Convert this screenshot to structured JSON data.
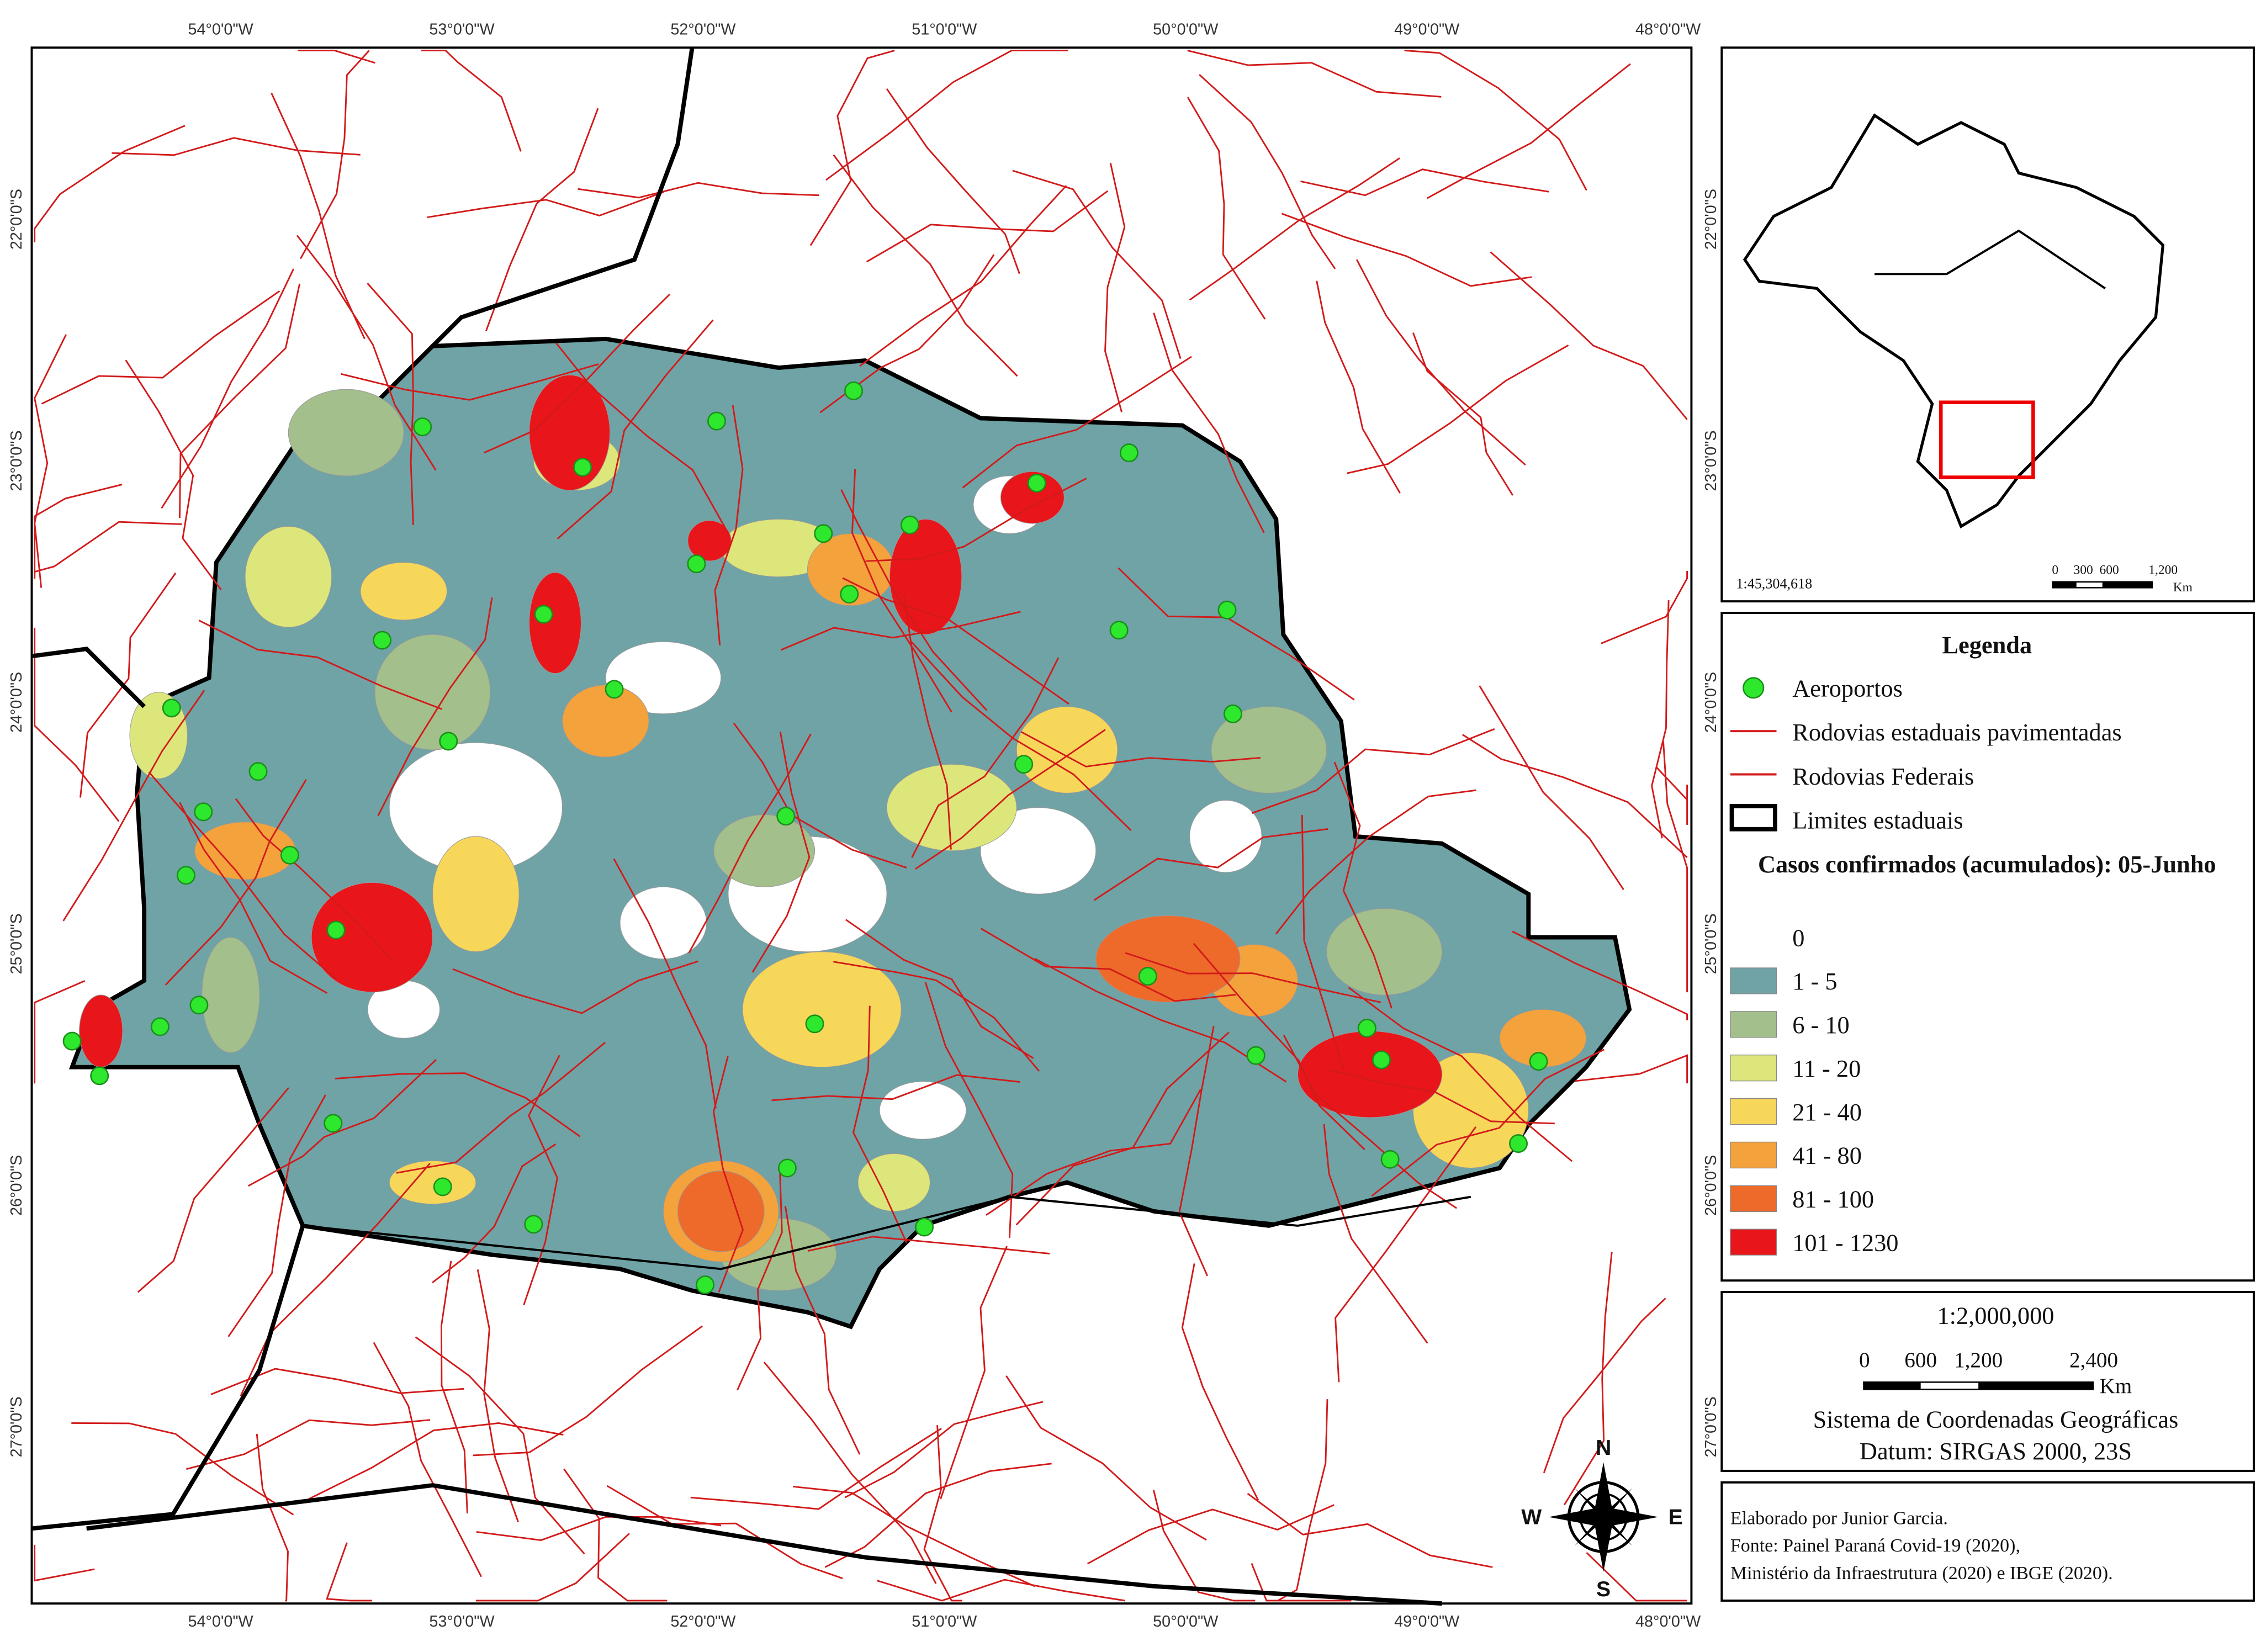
{
  "map": {
    "longitude_labels": [
      "54°0'0\"W",
      "53°0'0\"W",
      "52°0'0\"W",
      "51°0'0\"W",
      "50°0'0\"W",
      "49°0'0\"W",
      "48°0'0\"W"
    ],
    "latitude_labels": [
      "22°0'0\"S",
      "23°0'0\"S",
      "24°0'0\"S",
      "25°0'0\"S",
      "26°0'0\"S",
      "27°0'0\"S"
    ],
    "inset": {
      "scale": "1:45,304,618",
      "scale_bar": [
        "0",
        "300",
        "600",
        "1,200"
      ],
      "unit": "Km"
    },
    "legend": {
      "title": "Legenda",
      "items": [
        "Aeroportos",
        "Rodovias estaduais pavimentadas",
        "Rodovias Federais",
        "Limites estaduais"
      ],
      "cases_title": "Casos confirmados (acumulados): 05-Junho",
      "classes": [
        {
          "label": "0",
          "color": "#ffffff"
        },
        {
          "label": "1 - 5",
          "color": "#6fa3a6"
        },
        {
          "label": "6 - 10",
          "color": "#a3bf8c"
        },
        {
          "label": "11 - 20",
          "color": "#dde67a"
        },
        {
          "label": "21 - 40",
          "color": "#f7d75a"
        },
        {
          "label": "41 - 80",
          "color": "#f4a23c"
        },
        {
          "label": "81 - 100",
          "color": "#ee6a2a"
        },
        {
          "label": "101 - 1230",
          "color": "#e8161b"
        }
      ]
    },
    "scale": {
      "ratio": "1:2,000,000",
      "bar": [
        "0",
        "600",
        "1,200",
        "2,400"
      ],
      "unit": "Km",
      "crs": "Sistema de Coordenadas Geográficas",
      "datum": "Datum: SIRGAS 2000, 23S"
    },
    "credits": [
      "Elaborado por Junior Garcia.",
      "Fonte: Painel Paraná Covid-19 (2020),",
      "Ministério da Infraestrutura (2020) e IBGE (2020)."
    ],
    "compass": {
      "n": "N",
      "e": "E",
      "s": "S",
      "w": "W"
    }
  }
}
